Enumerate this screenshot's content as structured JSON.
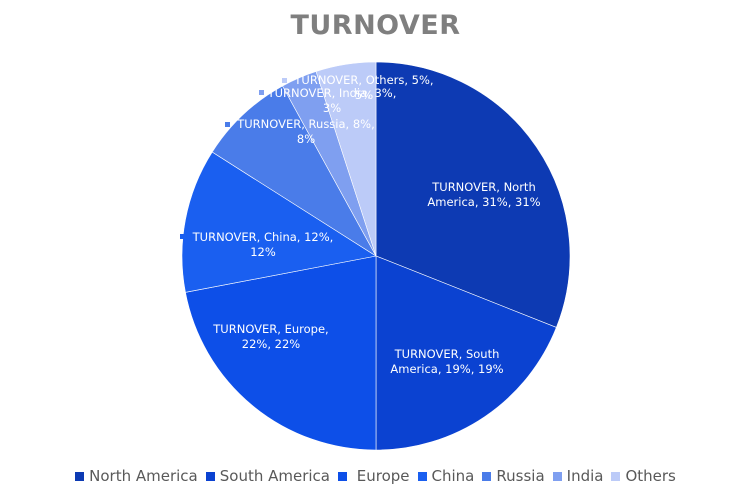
{
  "chart_data": {
    "type": "pie",
    "title": "TURNOVER",
    "series_name": "TURNOVER",
    "categories": [
      "North America",
      "South America",
      "Europe",
      "China",
      "Russia",
      "India",
      "Others"
    ],
    "legend_labels": [
      "North America",
      "South America",
      " Europe",
      "China",
      "Russia",
      "India",
      "Others"
    ],
    "values": [
      31,
      19,
      22,
      12,
      8,
      3,
      5
    ],
    "data_labels": [
      [
        "TURNOVER, North",
        "America, 31%, 31%"
      ],
      [
        "TURNOVER, South",
        "America, 19%, 19%"
      ],
      [
        "TURNOVER,  Europe,",
        "22%, 22%"
      ],
      [
        "TURNOVER, China, 12%,",
        "12%"
      ],
      [
        "TURNOVER, Russia, 8%,",
        "8%"
      ],
      [
        "TURNOVER, India, 3%,",
        "3%"
      ],
      [
        "TURNOVER, Others, 5%,",
        "5%"
      ]
    ],
    "colors": [
      "#0d3ab3",
      "#0b42d1",
      "#0d4fe8",
      "#1a5ff0",
      "#4a7ce9",
      "#7f9ff0",
      "#bccbf8"
    ],
    "label_color_light": "#ffffff",
    "label_color_dark": "#ffffff",
    "legend_position": "bottom"
  }
}
